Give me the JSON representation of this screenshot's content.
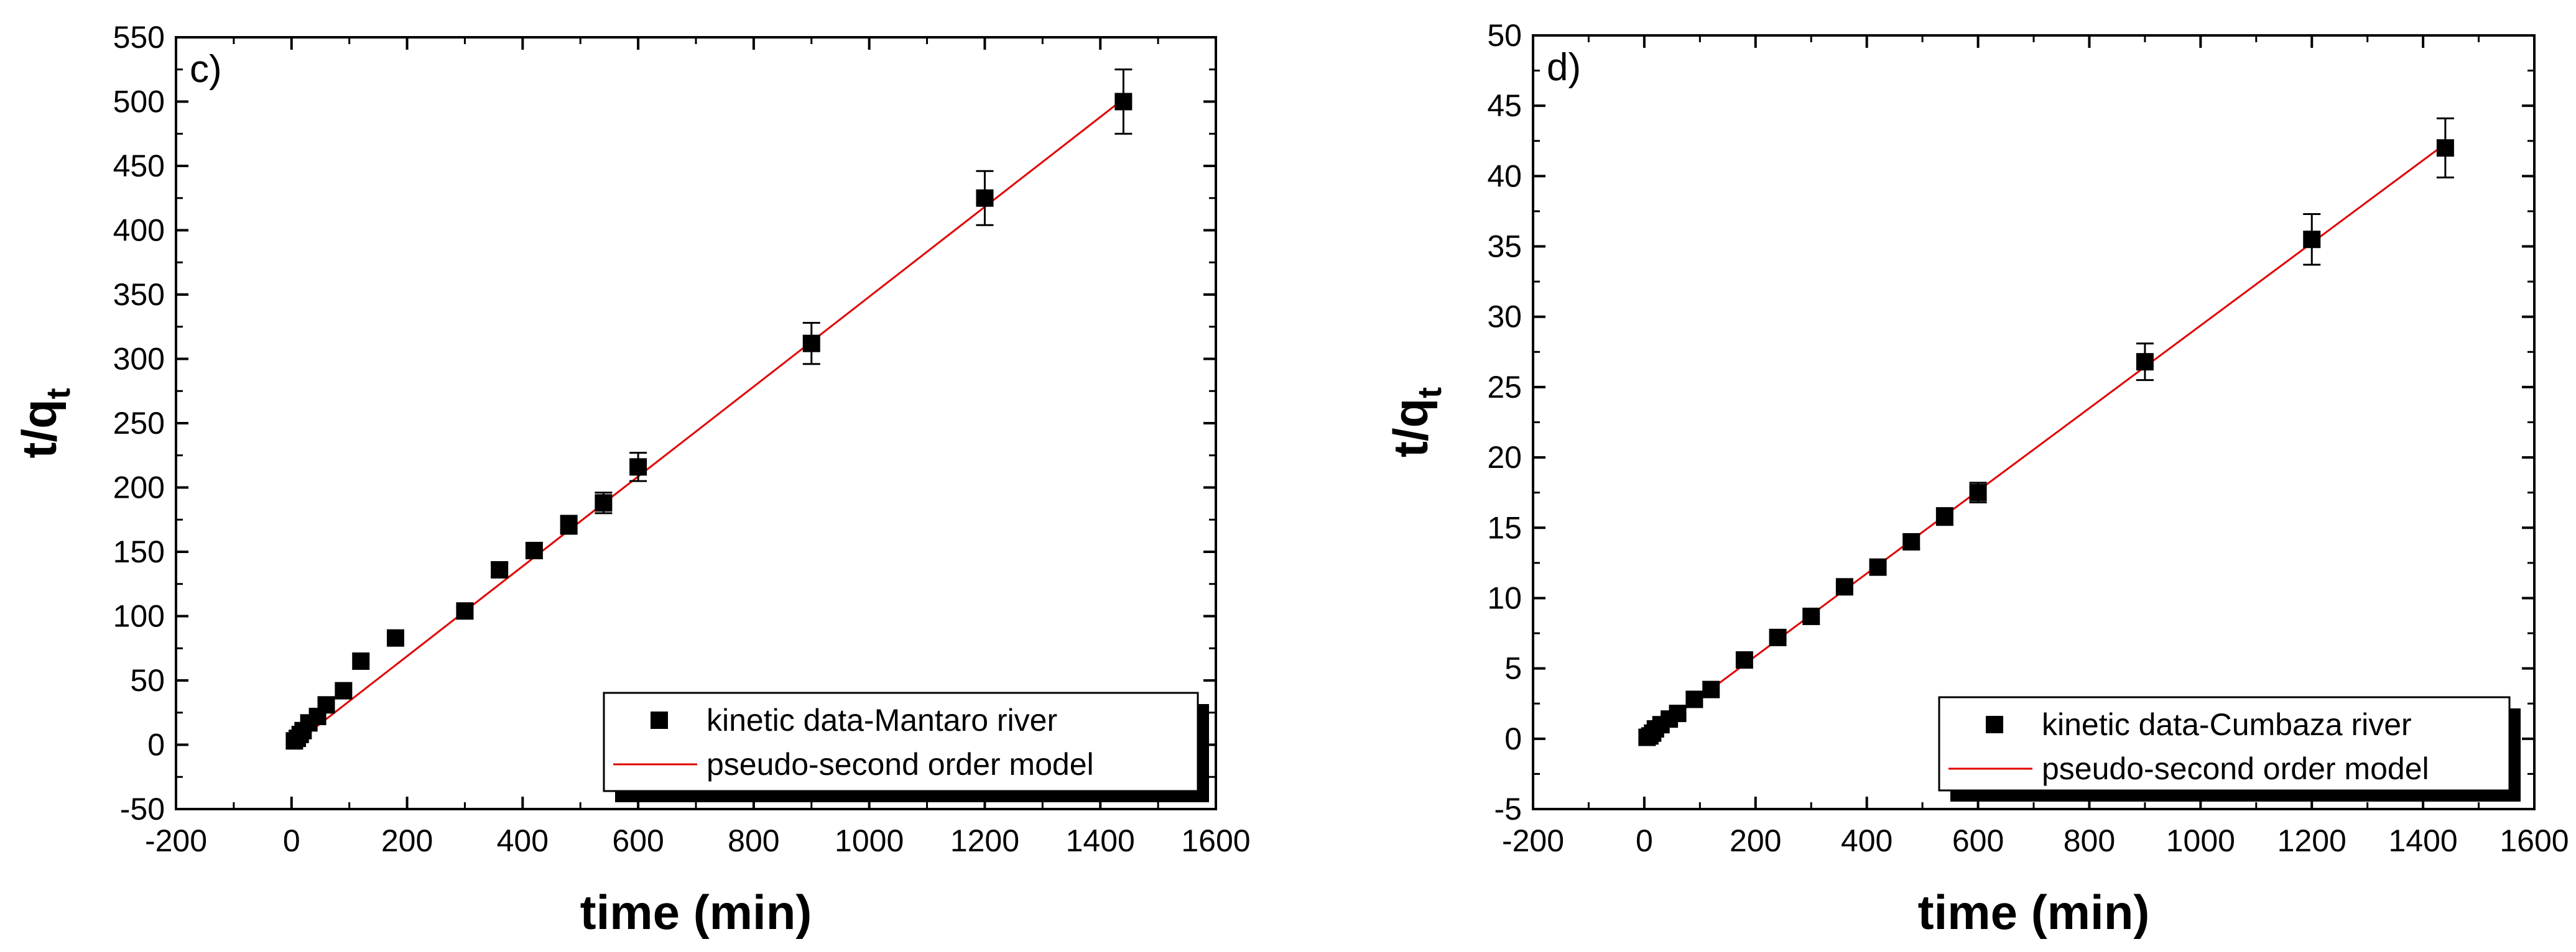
{
  "chart_data": [
    {
      "type": "scatter",
      "panel_label": "c)",
      "xlabel": "time (min)",
      "ylabel_main": "t/q",
      "ylabel_sub": "t",
      "xlim": [
        -200,
        1600
      ],
      "ylim": [
        -50,
        550
      ],
      "xticks": [
        -200,
        0,
        200,
        400,
        600,
        800,
        1000,
        1200,
        1400,
        1600
      ],
      "yticks": [
        -50,
        0,
        50,
        100,
        150,
        200,
        250,
        300,
        350,
        400,
        450,
        500,
        550
      ],
      "series": [
        {
          "name": "kinetic data-Mantaro river",
          "kind": "points",
          "x": [
            5,
            10,
            15,
            20,
            30,
            45,
            60,
            90,
            120,
            180,
            300,
            360,
            420,
            480,
            540,
            600,
            900,
            1200,
            1440
          ],
          "y": [
            3,
            5,
            8,
            11,
            17,
            22,
            31,
            42,
            65,
            83,
            104,
            136,
            151,
            171,
            188,
            216,
            312,
            425,
            500
          ],
          "yerr": [
            0,
            0,
            0,
            0,
            0,
            0,
            0,
            0,
            0,
            0,
            3,
            5,
            6,
            7,
            8,
            11,
            16,
            21,
            25
          ]
        },
        {
          "name": "pseudo-second order model",
          "kind": "line",
          "color": "#e00000",
          "x": [
            0,
            1440
          ],
          "y": [
            -1,
            502
          ]
        }
      ],
      "legend_position": "bottom-right"
    },
    {
      "type": "scatter",
      "panel_label": "d)",
      "xlabel": "time (min)",
      "ylabel_main": "t/q",
      "ylabel_sub": "t",
      "xlim": [
        -200,
        1600
      ],
      "ylim": [
        -5,
        50
      ],
      "xticks": [
        -200,
        0,
        200,
        400,
        600,
        800,
        1000,
        1200,
        1400,
        1600
      ],
      "yticks": [
        -5,
        0,
        5,
        10,
        15,
        20,
        25,
        30,
        35,
        40,
        45,
        50
      ],
      "series": [
        {
          "name": "kinetic data-Cumbaza river",
          "kind": "points",
          "x": [
            5,
            10,
            15,
            20,
            30,
            45,
            60,
            90,
            120,
            180,
            240,
            300,
            360,
            420,
            480,
            540,
            600,
            900,
            1200,
            1440
          ],
          "y": [
            0.1,
            0.2,
            0.4,
            0.7,
            1.0,
            1.4,
            1.8,
            2.8,
            3.5,
            5.6,
            7.2,
            8.7,
            10.8,
            12.2,
            14.0,
            15.8,
            17.5,
            26.8,
            35.5,
            42.0
          ],
          "yerr": [
            0,
            0,
            0,
            0,
            0,
            0,
            0,
            0,
            0,
            0,
            0,
            0,
            0,
            0,
            0.5,
            0.6,
            0.7,
            1.3,
            1.8,
            2.1
          ]
        },
        {
          "name": "pseudo-second order model",
          "kind": "line",
          "color": "#e00000",
          "x": [
            0,
            1440
          ],
          "y": [
            0,
            42.3
          ]
        }
      ],
      "legend_position": "bottom-right"
    }
  ]
}
